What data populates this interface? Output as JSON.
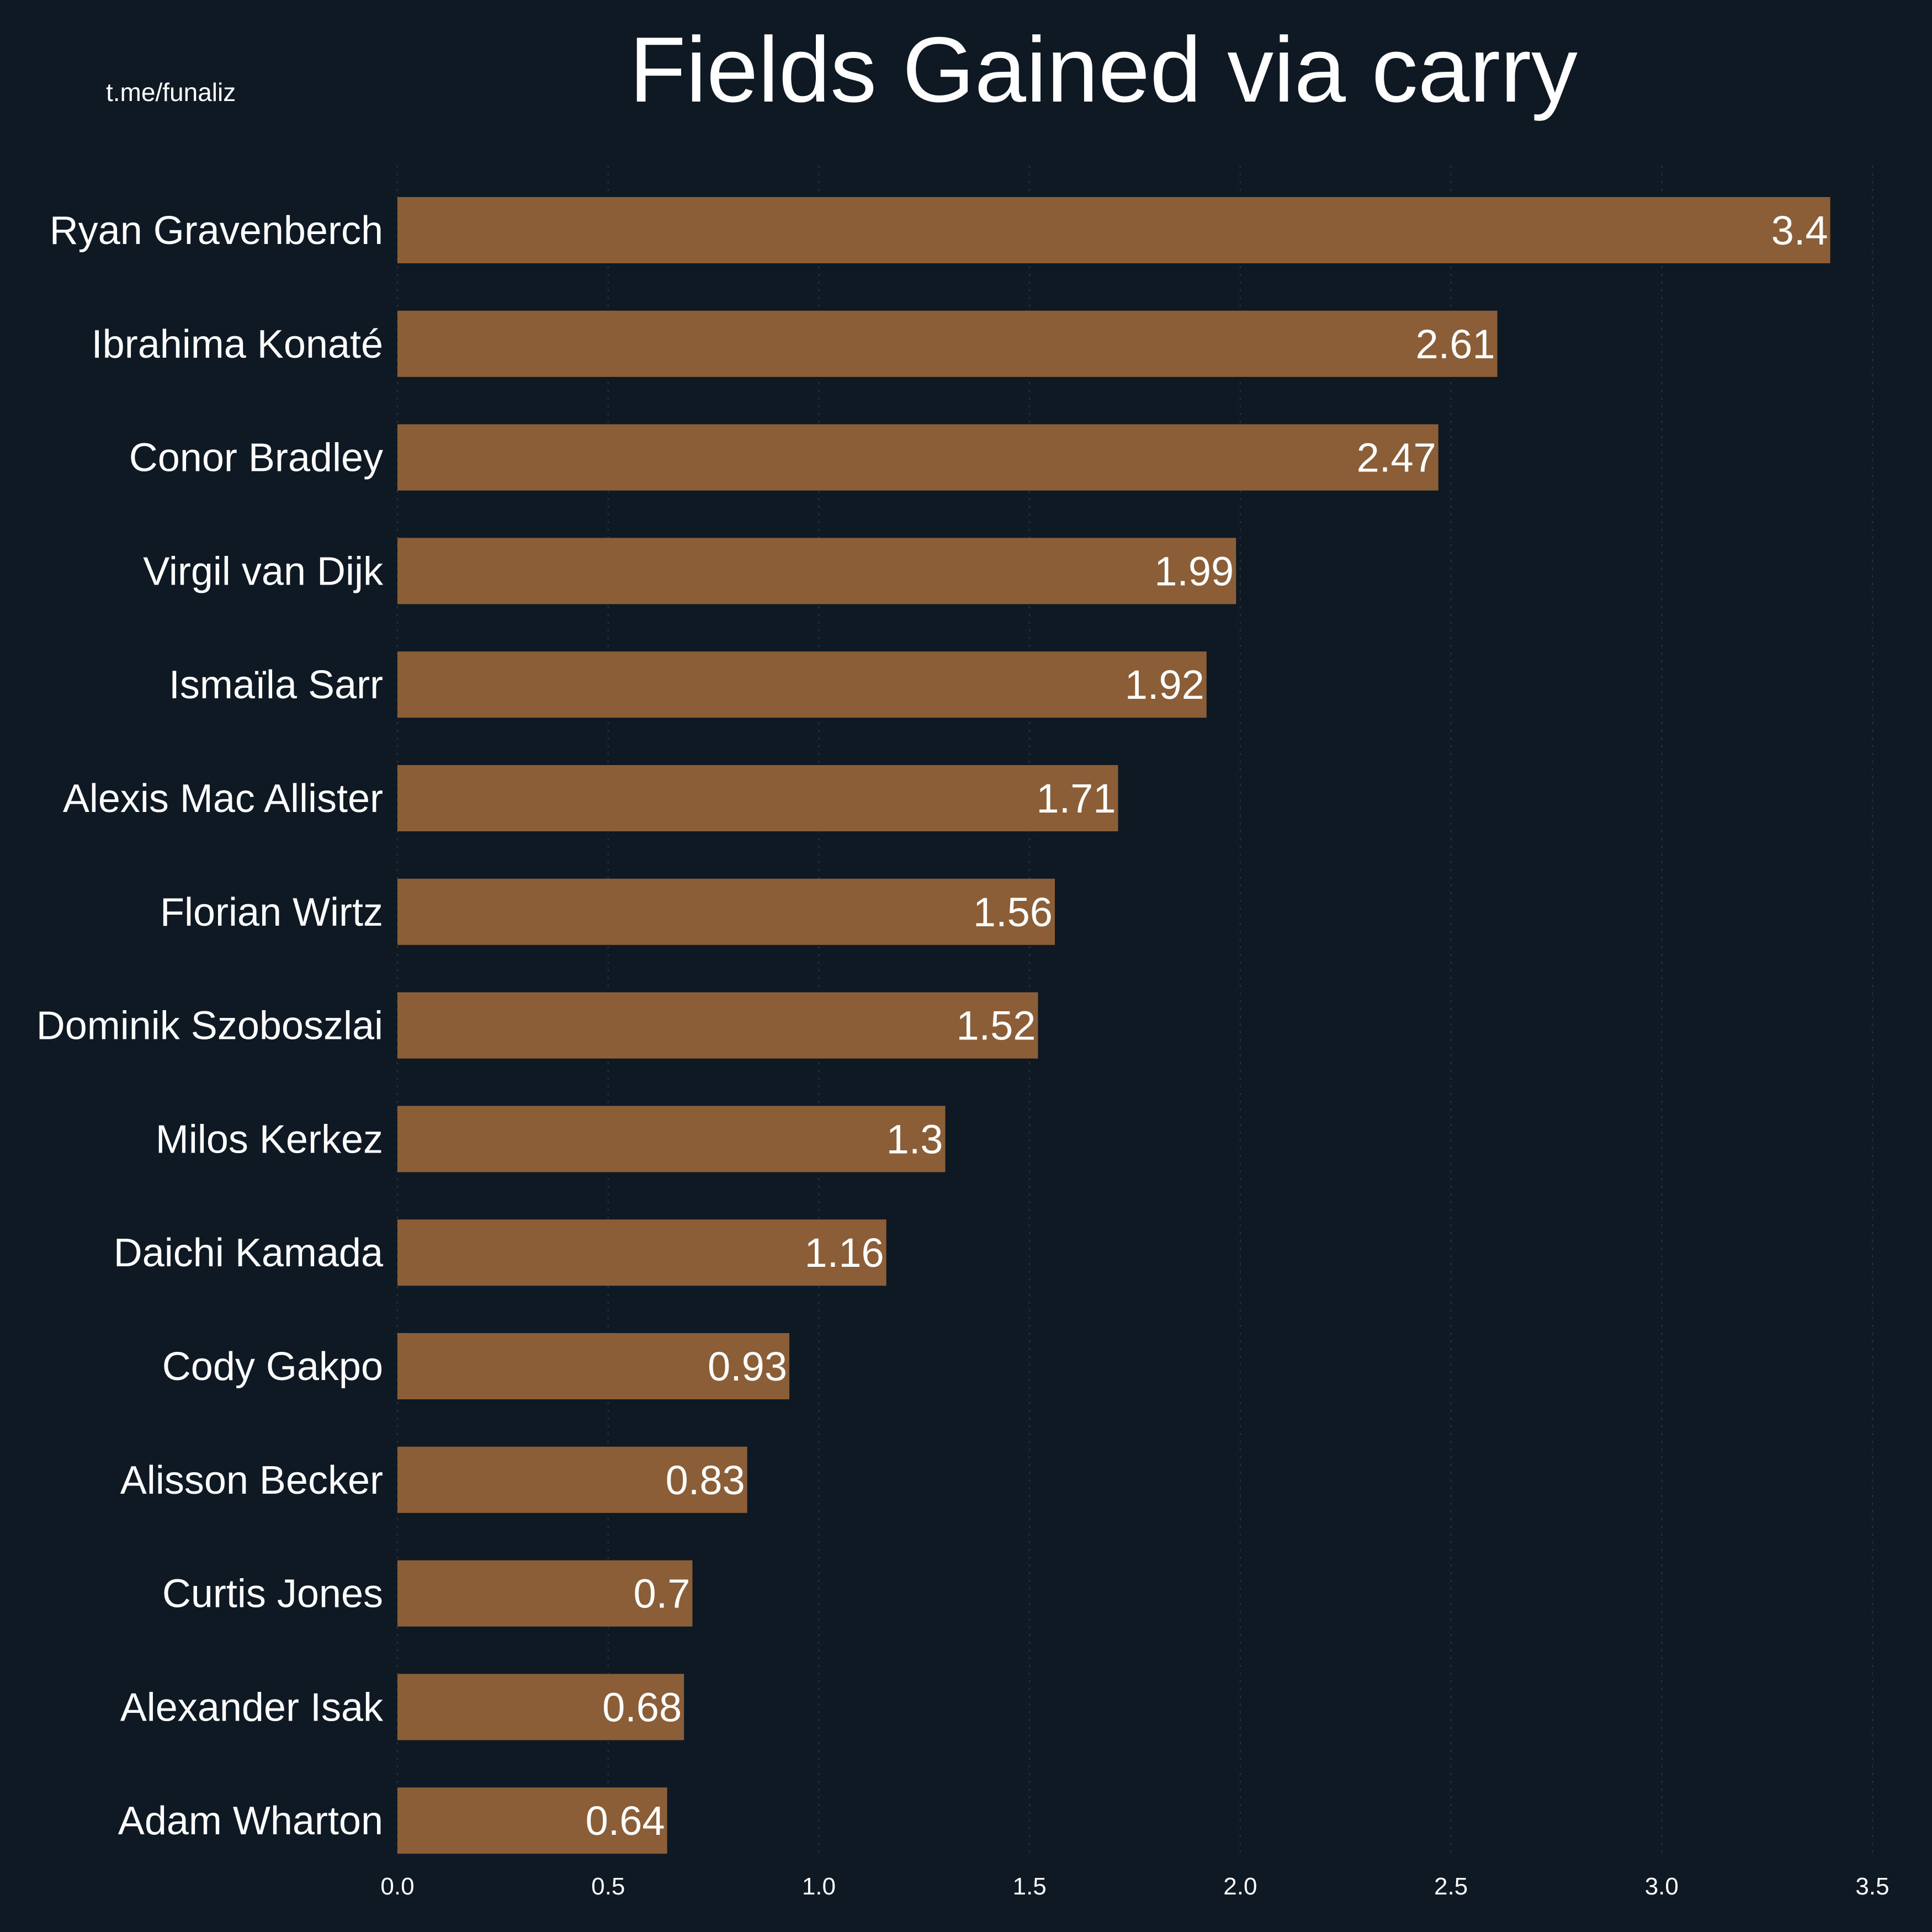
{
  "watermark": "t.me/funaliz",
  "chart_data": {
    "type": "bar",
    "orientation": "horizontal",
    "title": "Fields Gained via carry",
    "xlabel": "",
    "ylabel": "",
    "xlim": [
      0,
      3.5
    ],
    "xticks": [
      "0.0",
      "0.5",
      "1.0",
      "1.5",
      "2.0",
      "2.5",
      "3.0",
      "3.5"
    ],
    "grid": "vertical dotted, faint",
    "legend": "none",
    "categories": [
      "Ryan Gravenberch",
      "Ibrahima Konaté",
      "Conor Bradley",
      "Virgil van Dijk",
      "Ismaïla Sarr",
      "Alexis Mac Allister",
      "Florian Wirtz",
      "Dominik Szoboszlai",
      "Milos Kerkez",
      "Daichi Kamada",
      "Cody Gakpo",
      "Alisson Becker",
      "Curtis Jones",
      "Alexander Isak",
      "Adam Wharton"
    ],
    "values": [
      3.4,
      2.61,
      2.47,
      1.99,
      1.92,
      1.71,
      1.56,
      1.52,
      1.3,
      1.16,
      0.93,
      0.83,
      0.7,
      0.68,
      0.64
    ],
    "data_labels": [
      "3.4",
      "2.61",
      "2.47",
      "1.99",
      "1.92",
      "1.71",
      "1.56",
      "1.52",
      "1.3",
      "1.16",
      "0.93",
      "0.83",
      "0.7",
      "0.68",
      "0.64"
    ],
    "colors": {
      "background": "#0f1923",
      "bar": "#8b5e38",
      "text": "#ffffff",
      "grid": "#2a3340"
    }
  }
}
